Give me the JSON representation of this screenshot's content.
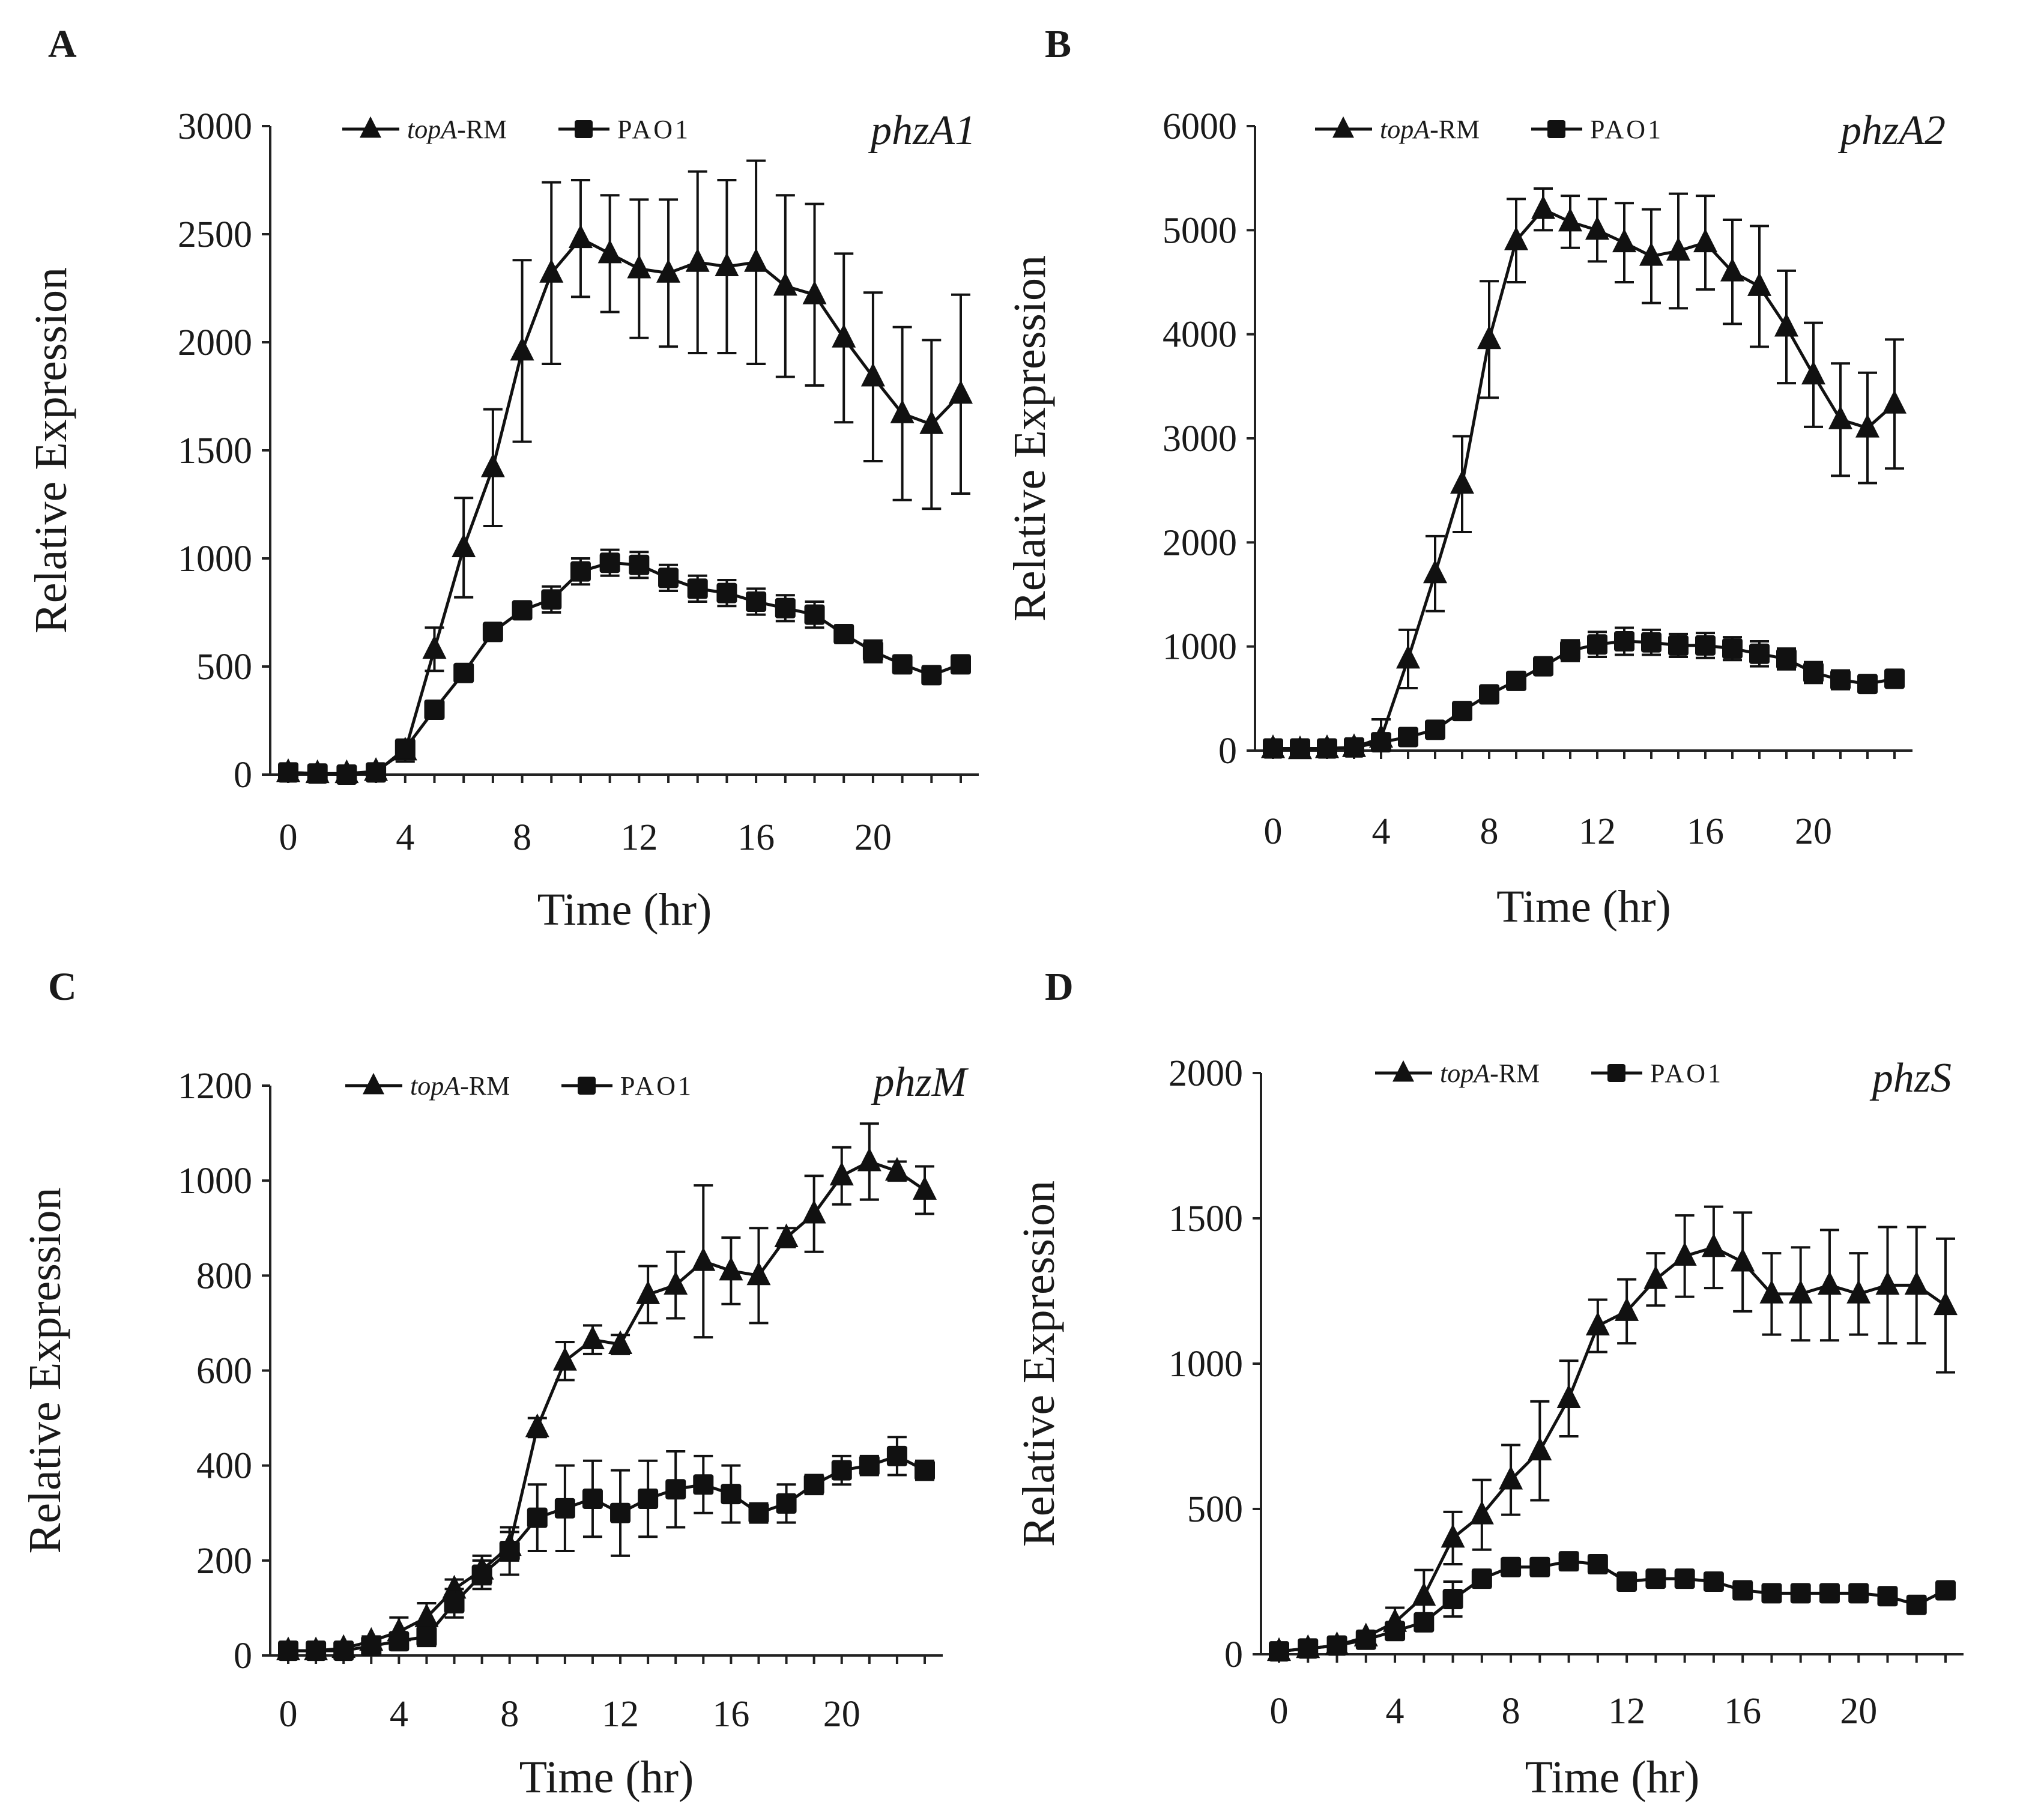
{
  "chart_data": [
    {
      "panel_label": "A",
      "type": "line",
      "gene": "phzA1",
      "xlabel": "Time (hr)",
      "ylabel": "Relative Expression",
      "xlim": [
        0,
        23
      ],
      "ylim": [
        0,
        3000
      ],
      "xticks": [
        "0",
        "4",
        "8",
        "12",
        "16",
        "20"
      ],
      "yticks": [
        "0",
        "500",
        "1000",
        "1500",
        "2000",
        "2500",
        "3000"
      ],
      "legend": {
        "position": "top-center",
        "entries": [
          {
            "name": "topA",
            "suffix": "-RM",
            "marker": "triangle"
          },
          {
            "name": "PAO1",
            "suffix": "",
            "marker": "square"
          }
        ]
      },
      "x": [
        0,
        1,
        2,
        3,
        4,
        5,
        6,
        7,
        8,
        9,
        10,
        11,
        12,
        13,
        14,
        15,
        16,
        17,
        18,
        19,
        20,
        21,
        22,
        23
      ],
      "series": [
        {
          "name": "topA-RM",
          "marker": "triangle",
          "values": [
            10,
            5,
            5,
            15,
            110,
            580,
            1050,
            1420,
            1960,
            2320,
            2480,
            2410,
            2340,
            2320,
            2370,
            2350,
            2370,
            2260,
            2220,
            2020,
            1840,
            1670,
            1620,
            1760
          ],
          "errors": [
            10,
            5,
            5,
            10,
            50,
            100,
            230,
            270,
            420,
            420,
            270,
            270,
            320,
            340,
            420,
            400,
            470,
            420,
            420,
            390,
            390,
            400,
            390,
            460
          ]
        },
        {
          "name": "PAO1",
          "marker": "square",
          "values": [
            10,
            5,
            0,
            10,
            120,
            300,
            470,
            660,
            760,
            810,
            940,
            980,
            970,
            910,
            860,
            840,
            800,
            770,
            740,
            650,
            570,
            510,
            460,
            510
          ],
          "errors": [
            5,
            5,
            5,
            5,
            20,
            30,
            30,
            30,
            30,
            60,
            60,
            60,
            60,
            60,
            60,
            60,
            60,
            60,
            60,
            40,
            50,
            40,
            40,
            40
          ]
        }
      ]
    },
    {
      "panel_label": "B",
      "type": "line",
      "gene": "phzA2",
      "xlabel": "Time (hr)",
      "ylabel": "Relative Expression",
      "xlim": [
        0,
        23
      ],
      "ylim": [
        0,
        6000
      ],
      "xticks": [
        "0",
        "4",
        "8",
        "12",
        "16",
        "20"
      ],
      "yticks": [
        "0",
        "1000",
        "2000",
        "3000",
        "4000",
        "5000",
        "6000"
      ],
      "legend": {
        "position": "top-center",
        "entries": [
          {
            "name": "topA",
            "suffix": "-RM",
            "marker": "triangle"
          },
          {
            "name": "PAO1",
            "suffix": "",
            "marker": "square"
          }
        ]
      },
      "x": [
        0,
        1,
        2,
        3,
        4,
        5,
        6,
        7,
        8,
        9,
        10,
        11,
        12,
        13,
        14,
        15,
        16,
        17,
        18,
        19,
        20,
        21,
        22,
        23
      ],
      "series": [
        {
          "name": "topA-RM",
          "marker": "triangle",
          "values": [
            20,
            10,
            20,
            30,
            120,
            880,
            1700,
            2560,
            3950,
            4900,
            5200,
            5080,
            5000,
            4880,
            4750,
            4800,
            4880,
            4600,
            4460,
            4070,
            3610,
            3180,
            3100,
            3330
          ],
          "errors": [
            20,
            10,
            20,
            20,
            180,
            280,
            360,
            460,
            560,
            400,
            200,
            250,
            300,
            380,
            450,
            550,
            450,
            500,
            580,
            540,
            500,
            540,
            530,
            620
          ]
        },
        {
          "name": "PAO1",
          "marker": "square",
          "values": [
            20,
            20,
            20,
            30,
            80,
            130,
            200,
            380,
            540,
            670,
            810,
            960,
            1020,
            1050,
            1040,
            1010,
            1010,
            980,
            930,
            880,
            750,
            680,
            640,
            690
          ],
          "errors": [
            10,
            10,
            10,
            10,
            20,
            20,
            30,
            40,
            50,
            60,
            60,
            100,
            120,
            130,
            120,
            110,
            120,
            110,
            120,
            100,
            100,
            90,
            70,
            50
          ]
        }
      ]
    },
    {
      "panel_label": "C",
      "type": "line",
      "gene": "phzM",
      "xlabel": "Time (hr)",
      "ylabel": "Relative Expression",
      "xlim": [
        0,
        23
      ],
      "ylim": [
        0,
        1200
      ],
      "xticks": [
        "0",
        "4",
        "8",
        "12",
        "16",
        "20"
      ],
      "yticks": [
        "0",
        "200",
        "400",
        "600",
        "800",
        "1000",
        "1200"
      ],
      "legend": {
        "position": "top-center",
        "entries": [
          {
            "name": "topA",
            "suffix": "-RM",
            "marker": "triangle"
          },
          {
            "name": "PAO1",
            "suffix": "",
            "marker": "square"
          }
        ]
      },
      "x": [
        0,
        1,
        2,
        3,
        4,
        5,
        6,
        7,
        8,
        9,
        10,
        11,
        12,
        13,
        14,
        15,
        16,
        17,
        18,
        19,
        20,
        21,
        22,
        23
      ],
      "series": [
        {
          "name": "topA-RM",
          "marker": "triangle",
          "values": [
            10,
            10,
            15,
            30,
            50,
            80,
            140,
            180,
            230,
            480,
            620,
            665,
            655,
            760,
            780,
            830,
            810,
            800,
            880,
            930,
            1010,
            1040,
            1020,
            980
          ],
          "errors": [
            5,
            5,
            10,
            10,
            30,
            30,
            20,
            30,
            30,
            20,
            40,
            30,
            20,
            60,
            70,
            160,
            70,
            100,
            20,
            80,
            60,
            80,
            20,
            50
          ]
        },
        {
          "name": "PAO1",
          "marker": "square",
          "values": [
            10,
            10,
            10,
            20,
            30,
            40,
            110,
            170,
            220,
            290,
            310,
            330,
            300,
            330,
            350,
            360,
            340,
            300,
            320,
            360,
            390,
            400,
            420,
            390
          ],
          "errors": [
            5,
            5,
            5,
            10,
            10,
            20,
            30,
            30,
            50,
            70,
            90,
            80,
            90,
            80,
            80,
            60,
            60,
            20,
            40,
            20,
            30,
            20,
            40,
            20
          ]
        }
      ]
    },
    {
      "panel_label": "D",
      "type": "line",
      "gene": "phzS",
      "xlabel": "Time (hr)",
      "ylabel": "Relative Expression",
      "xlim": [
        0,
        23
      ],
      "ylim": [
        0,
        2000
      ],
      "xticks": [
        "0",
        "4",
        "8",
        "12",
        "16",
        "20"
      ],
      "yticks": [
        "0",
        "500",
        "1000",
        "1500",
        "2000"
      ],
      "legend": {
        "position": "top-center",
        "entries": [
          {
            "name": "topA",
            "suffix": "-RM",
            "marker": "triangle"
          },
          {
            "name": "PAO1",
            "suffix": "",
            "marker": "square"
          }
        ]
      },
      "x": [
        0,
        1,
        2,
        3,
        4,
        5,
        6,
        7,
        8,
        9,
        10,
        11,
        12,
        13,
        14,
        15,
        16,
        17,
        18,
        19,
        20,
        21,
        22,
        23
      ],
      "series": [
        {
          "name": "topA-RM",
          "marker": "triangle",
          "values": [
            10,
            20,
            30,
            60,
            110,
            200,
            400,
            480,
            600,
            700,
            880,
            1130,
            1180,
            1290,
            1370,
            1400,
            1350,
            1240,
            1240,
            1270,
            1240,
            1270,
            1270,
            1200
          ],
          "errors": [
            10,
            10,
            10,
            20,
            50,
            90,
            90,
            120,
            120,
            170,
            130,
            90,
            110,
            90,
            140,
            140,
            170,
            140,
            160,
            190,
            140,
            200,
            200,
            230
          ]
        },
        {
          "name": "PAO1",
          "marker": "square",
          "values": [
            10,
            20,
            30,
            50,
            80,
            110,
            190,
            260,
            300,
            300,
            320,
            310,
            250,
            260,
            260,
            250,
            220,
            210,
            210,
            210,
            210,
            200,
            170,
            220
          ],
          "errors": [
            10,
            10,
            10,
            20,
            20,
            20,
            60,
            30,
            20,
            30,
            30,
            30,
            20,
            20,
            20,
            20,
            30,
            20,
            20,
            20,
            20,
            20,
            20,
            20
          ]
        }
      ]
    }
  ]
}
